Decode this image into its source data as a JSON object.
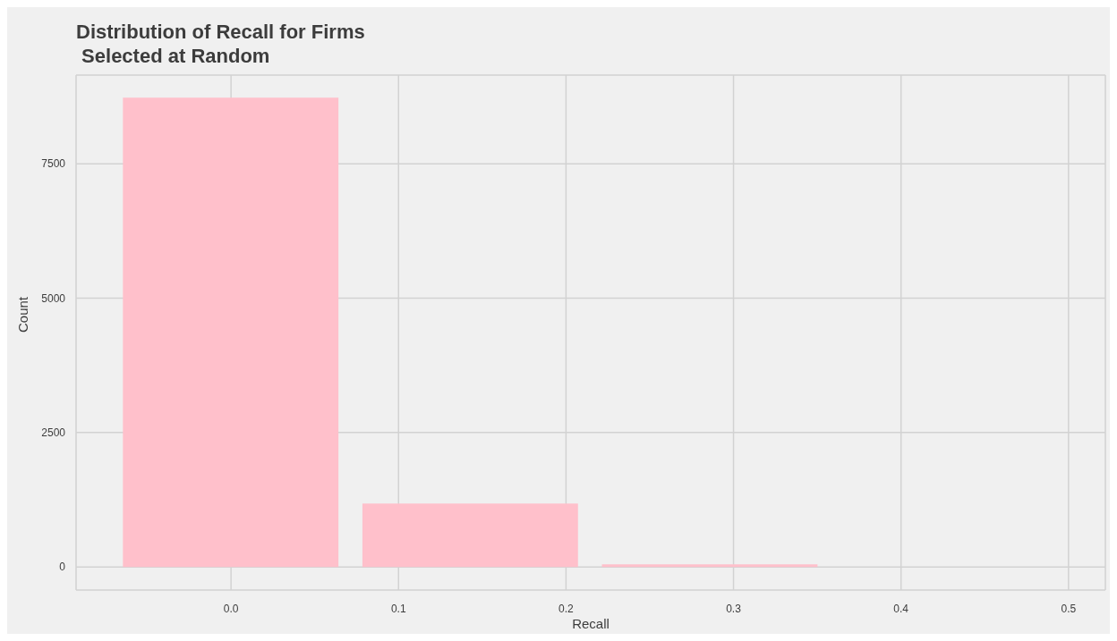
{
  "chart_data": {
    "type": "bar",
    "title": "Distribution of Recall for Firms\n Selected at Random",
    "xlabel": "Recall",
    "ylabel": "Count",
    "x": [
      0,
      0.143,
      0.286
    ],
    "values": [
      8730,
      1180,
      50
    ],
    "color": "#ffc0cb",
    "xlim": [
      -0.0925,
      0.522
    ],
    "xticks": [
      {
        "value": 0,
        "label": "0.0"
      },
      {
        "value": 0.1,
        "label": "0.1"
      },
      {
        "value": 0.2,
        "label": "0.2"
      },
      {
        "value": 0.3,
        "label": "0.3"
      },
      {
        "value": 0.4,
        "label": "0.4"
      },
      {
        "value": 0.5,
        "label": "0.5"
      }
    ],
    "ylim": [
      -430,
      9150
    ],
    "yticks": [
      0,
      2500,
      5000,
      7500
    ],
    "grid": true
  }
}
